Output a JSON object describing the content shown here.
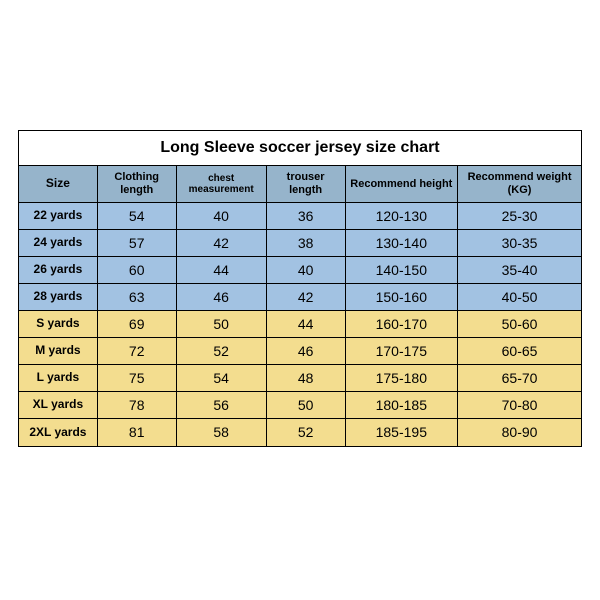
{
  "title": "Long Sleeve soccer jersey size chart",
  "columns": [
    "Size",
    "Clothing length",
    "chest measurement",
    "trouser length",
    "Recommend height",
    "Recommend weight (KG)"
  ],
  "col_widths_pct": [
    14,
    14,
    16,
    14,
    20,
    22
  ],
  "colors": {
    "header_bg": "#96b4cb",
    "group1_bg": "#a2c2e2",
    "group2_bg": "#f3dd8f",
    "border": "#000000",
    "page_bg": "#ffffff"
  },
  "font": {
    "title_size": 16,
    "header_size": 11,
    "cell_size": 14,
    "label_size": 12,
    "family": "Arial"
  },
  "groups": [
    {
      "color": "group1",
      "rows": [
        {
          "size": "22 yards",
          "clothing_length": "54",
          "chest": "40",
          "trouser": "36",
          "height": "120-130",
          "weight": "25-30"
        },
        {
          "size": "24 yards",
          "clothing_length": "57",
          "chest": "42",
          "trouser": "38",
          "height": "130-140",
          "weight": "30-35"
        },
        {
          "size": "26 yards",
          "clothing_length": "60",
          "chest": "44",
          "trouser": "40",
          "height": "140-150",
          "weight": "35-40"
        },
        {
          "size": "28 yards",
          "clothing_length": "63",
          "chest": "46",
          "trouser": "42",
          "height": "150-160",
          "weight": "40-50"
        }
      ]
    },
    {
      "color": "group2",
      "rows": [
        {
          "size": "S yards",
          "clothing_length": "69",
          "chest": "50",
          "trouser": "44",
          "height": "160-170",
          "weight": "50-60"
        },
        {
          "size": "M yards",
          "clothing_length": "72",
          "chest": "52",
          "trouser": "46",
          "height": "170-175",
          "weight": "60-65"
        },
        {
          "size": "L yards",
          "clothing_length": "75",
          "chest": "54",
          "trouser": "48",
          "height": "175-180",
          "weight": "65-70"
        },
        {
          "size": "XL yards",
          "clothing_length": "78",
          "chest": "56",
          "trouser": "50",
          "height": "180-185",
          "weight": "70-80"
        },
        {
          "size": "2XL yards",
          "clothing_length": "81",
          "chest": "58",
          "trouser": "52",
          "height": "185-195",
          "weight": "80-90"
        }
      ]
    }
  ]
}
